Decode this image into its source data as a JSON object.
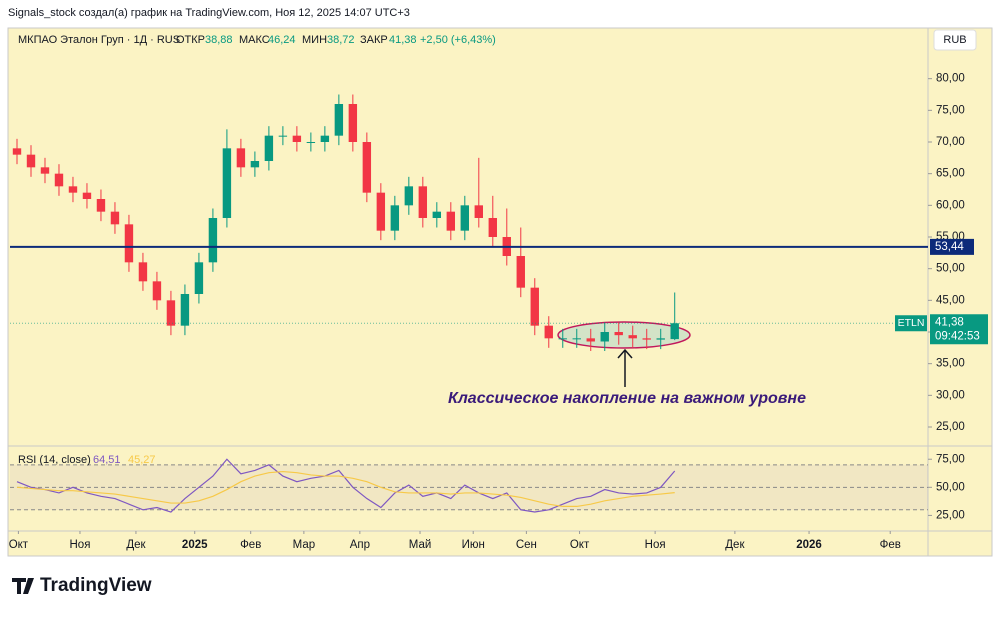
{
  "header": {
    "caption": "Signals_stock создал(а) график на TradingView.com, Ноя 12, 2025 14:07 UTC+3",
    "symbol": "МКПАО Эталон Груп · 1Д · RUS",
    "open_label": "ОТКР",
    "open": "38,88",
    "high_label": "МАКС",
    "high": "46,24",
    "low_label": "МИН",
    "low": "38,72",
    "close_label": "ЗАКР",
    "close": "41,38",
    "change": "+2,50 (+6,43%)",
    "currency": "RUB"
  },
  "chart_data": {
    "type": "candlestick",
    "annotation": "Классическое накопление на важном уровне",
    "x": [
      0,
      1,
      2,
      3,
      4,
      5,
      6,
      7,
      8,
      9,
      10,
      11,
      12,
      13,
      14,
      15,
      16,
      17,
      18,
      19,
      20,
      21,
      22,
      23,
      24,
      25,
      26,
      27,
      28,
      29,
      30,
      31,
      32,
      33,
      34,
      35,
      36,
      37,
      38,
      39,
      40,
      41,
      42,
      43,
      44,
      45,
      46,
      47
    ],
    "open": [
      69,
      68,
      66,
      65,
      63,
      62,
      61,
      59,
      57,
      51,
      48,
      45,
      41,
      46,
      51,
      58,
      69,
      66,
      67,
      71,
      71,
      70,
      70,
      71,
      76,
      70,
      62,
      56,
      60,
      63,
      58,
      59,
      56,
      60,
      58,
      55,
      52,
      47,
      41,
      39,
      39,
      39,
      38.5,
      40,
      39.5,
      39,
      38.8,
      38.88
    ],
    "high": [
      70.5,
      69.5,
      67.5,
      66.5,
      64.5,
      63.5,
      62.5,
      60.5,
      58.5,
      52.5,
      49.5,
      46.5,
      47.5,
      52.5,
      59.5,
      72,
      70.5,
      68.5,
      72.5,
      72.5,
      72.5,
      71.5,
      72.5,
      77.5,
      77.5,
      71.5,
      63.5,
      61.5,
      64.5,
      64.5,
      60.5,
      60.5,
      61.5,
      67.5,
      61.5,
      59.5,
      56.5,
      48.5,
      42.5,
      40.5,
      40.5,
      40.5,
      41.5,
      41.5,
      41,
      40.5,
      40.5,
      46.24
    ],
    "low": [
      66.5,
      64.5,
      63.5,
      61.5,
      60.5,
      59.5,
      57.5,
      55.5,
      49.5,
      46.5,
      43.5,
      39.5,
      39.5,
      44.5,
      49.5,
      56.5,
      64.5,
      64.5,
      65.5,
      69.5,
      68.5,
      68.5,
      68.5,
      69.5,
      68.5,
      60.5,
      54.5,
      54.5,
      58.5,
      56.5,
      56.5,
      54.5,
      54.5,
      56.5,
      53.5,
      50.5,
      45.5,
      39.5,
      37.5,
      37.5,
      37.5,
      37,
      37,
      38,
      37.5,
      37.3,
      37.3,
      38.72
    ],
    "close": [
      68,
      66,
      65,
      63,
      62,
      61,
      59,
      57,
      51,
      48,
      45,
      41,
      46,
      51,
      58,
      69,
      66,
      67,
      71,
      71,
      70,
      70,
      71,
      76,
      70,
      62,
      56,
      60,
      63,
      58,
      59,
      56,
      60,
      58,
      55,
      52,
      47,
      41,
      39,
      39,
      39,
      38.5,
      40,
      39.5,
      39,
      38.8,
      39,
      41.38
    ],
    "up_color": "#089981",
    "down_color": "#f23645",
    "xlim": [
      0,
      65.6
    ],
    "xticks": [
      {
        "value": 0.6,
        "label": "Окт"
      },
      {
        "value": 5,
        "label": "Ноя"
      },
      {
        "value": 9,
        "label": "Дек"
      },
      {
        "value": 13.2,
        "label": "2025"
      },
      {
        "value": 17.2,
        "label": "Фев"
      },
      {
        "value": 21,
        "label": "Мар"
      },
      {
        "value": 25,
        "label": "Апр"
      },
      {
        "value": 29.3,
        "label": "Май"
      },
      {
        "value": 33.1,
        "label": "Июн"
      },
      {
        "value": 36.9,
        "label": "Сен"
      },
      {
        "value": 40.7,
        "label": "Окт"
      },
      {
        "value": 46.1,
        "label": "Ноя"
      },
      {
        "value": 51.8,
        "label": "Дек"
      },
      {
        "value": 57.1,
        "label": "2026"
      },
      {
        "value": 62.9,
        "label": "Фев"
      }
    ],
    "ylim": [
      22,
      88
    ],
    "yticks": [
      {
        "value": 25,
        "label": "25,00"
      },
      {
        "value": 30,
        "label": "30,00"
      },
      {
        "value": 35,
        "label": "35,00"
      },
      {
        "value": 40,
        "label": "40,00"
      },
      {
        "value": 45,
        "label": "45,00"
      },
      {
        "value": 50,
        "label": "50,00"
      },
      {
        "value": 55,
        "label": "55,00"
      },
      {
        "value": 60,
        "label": "60,00"
      },
      {
        "value": 65,
        "label": "65,00"
      },
      {
        "value": 70,
        "label": "70,00"
      },
      {
        "value": 75,
        "label": "75,00"
      },
      {
        "value": 80,
        "label": "80,00"
      }
    ],
    "level": {
      "value": 53.44,
      "label": "53,44",
      "color": "#0c2a7a"
    },
    "last_price": {
      "ticker": "ETLN",
      "value": 41.38,
      "label": "41,38",
      "countdown": "09:42:53",
      "color": "#089981"
    },
    "rsi": {
      "title": "RSI (14, close)",
      "value_label": "64,51",
      "ma_label": "45,27",
      "series": [
        {
          "name": "RSI",
          "color": "#7e57c2",
          "values": [
            55,
            50,
            48,
            45,
            50,
            45,
            42,
            40,
            35,
            30,
            32,
            28,
            40,
            50,
            60,
            75,
            62,
            65,
            70,
            60,
            55,
            58,
            60,
            65,
            50,
            40,
            32,
            45,
            52,
            42,
            45,
            40,
            52,
            45,
            40,
            45,
            30,
            28,
            30,
            35,
            40,
            42,
            48,
            45,
            44,
            45,
            50,
            64.51
          ]
        },
        {
          "name": "MA",
          "color": "#f7c948",
          "values": [
            50,
            49,
            48,
            47,
            47,
            46,
            45,
            44,
            42,
            40,
            38,
            36,
            36,
            38,
            42,
            48,
            55,
            60,
            63,
            64,
            63,
            61,
            60,
            60,
            58,
            55,
            50,
            46,
            45,
            45,
            45,
            44,
            45,
            45,
            44,
            43,
            41,
            38,
            35,
            33,
            33,
            35,
            38,
            40,
            42,
            43,
            44,
            45.27
          ]
        }
      ],
      "ylim": [
        12,
        85
      ],
      "yticks": [
        {
          "value": 25,
          "label": "25,00"
        },
        {
          "value": 50,
          "label": "50,00"
        },
        {
          "value": 75,
          "label": "75,00"
        }
      ],
      "bands": [
        30,
        50,
        70
      ]
    }
  },
  "footer": {
    "logo": "TradingView"
  }
}
